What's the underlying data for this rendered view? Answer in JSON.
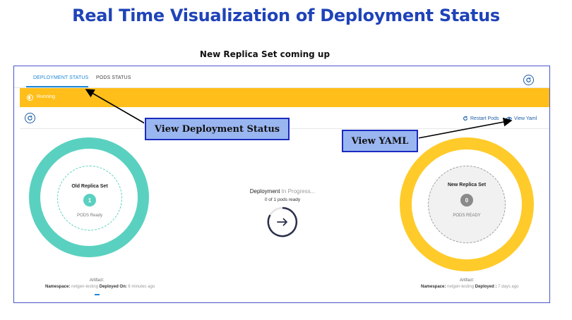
{
  "slide": {
    "title": "Real Time Visualization of Deployment Status",
    "subtitle": "New Replica Set coming up"
  },
  "tabs": [
    {
      "label": "DEPLOYMENT STATUS",
      "active": true
    },
    {
      "label": "PODS STATUS",
      "active": false
    }
  ],
  "status": {
    "text": "Running",
    "color": "#ffbe19"
  },
  "actions": {
    "restart_label": "Restart Pods",
    "view_yaml_label": "View Yaml"
  },
  "old_replica": {
    "title": "Old Replica Set",
    "count": "1",
    "sub": "PODS Ready",
    "color": "#5ad1c0"
  },
  "new_replica": {
    "title": "New Replica Set",
    "count": "0",
    "sub": "PODS READY",
    "color": "#ffcb2a"
  },
  "deployment": {
    "label": "Deployment",
    "state": "In Progress...",
    "pods_ready": "0 of 1 pods ready"
  },
  "left_meta": {
    "artifact": "Artifact:",
    "namespace_label": "Namespace:",
    "namespace_value": "netgen-testing",
    "deployed_label": "Deployed On:",
    "deployed_value": "6 minutes ago"
  },
  "right_meta": {
    "artifact": "Artifact:",
    "namespace_label": "Namespace:",
    "namespace_value": "netgen-testing",
    "deployed_label": "Deployed :",
    "deployed_value": "7 days ago"
  },
  "callouts": {
    "deployment_status": "View Deployment Status",
    "yaml": "View YAML"
  },
  "colors": {
    "accent": "#1e88d6",
    "title": "#1f43b8",
    "callout_fill": "#9ab6f0",
    "callout_border": "#1a2bbf"
  }
}
